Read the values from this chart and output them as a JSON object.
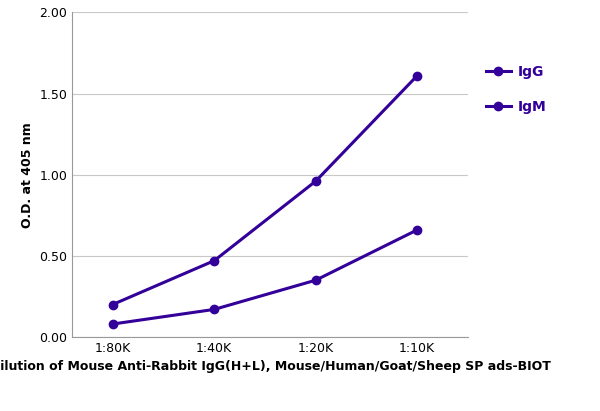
{
  "x_labels": [
    "1:80K",
    "1:40K",
    "1:20K",
    "1:10K"
  ],
  "x_positions": [
    1,
    2,
    3,
    4
  ],
  "IgG_values": [
    0.2,
    0.47,
    0.96,
    1.61
  ],
  "IgM_values": [
    0.08,
    0.17,
    0.35,
    0.66
  ],
  "line_color": "#330099",
  "marker_style": "o",
  "marker_size": 6,
  "marker_facecolor": "#330099",
  "line_width": 2.2,
  "ylabel": "O.D. at 405 nm",
  "xlabel": "Dilution of Mouse Anti-Rabbit IgG(H+L), Mouse/Human/Goat/Sheep SP ads-BIOT",
  "ylim": [
    0.0,
    2.0
  ],
  "yticks": [
    0.0,
    0.5,
    1.0,
    1.5,
    2.0
  ],
  "legend_labels": [
    "IgG",
    "IgM"
  ],
  "background_color": "#ffffff",
  "grid_color": "#c8c8c8",
  "axis_label_fontsize": 9,
  "tick_fontsize": 9,
  "legend_fontsize": 10
}
